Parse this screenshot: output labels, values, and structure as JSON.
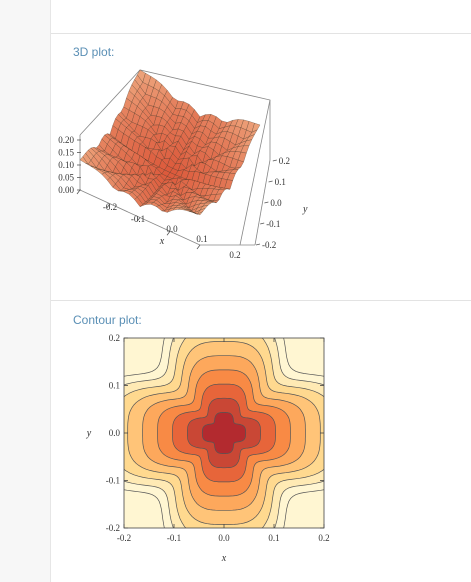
{
  "sections": {
    "plot3d_label": "3D plot:",
    "contour_label": "Contour plot:"
  },
  "colors": {
    "label": "#5a8fb5",
    "contour_fills": [
      "#fff6d2",
      "#ffeab4",
      "#ffd98f",
      "#ffc478",
      "#fda85c",
      "#f88a45",
      "#e7653a",
      "#c94735",
      "#b32a2f"
    ]
  },
  "chart_data": [
    {
      "type": "surface3d",
      "title": "",
      "x_ticks": [
        "-0.2",
        "-0.1",
        "0.0",
        "0.1",
        "0.2"
      ],
      "y_ticks": [
        "-0.2",
        "-0.1",
        "0.0",
        "0.1",
        "0.2"
      ],
      "z_ticks": [
        "0.00",
        "0.05",
        "0.10",
        "0.15",
        "0.20"
      ],
      "xlabel": "x",
      "ylabel": "y",
      "xlim": [
        -0.2,
        0.2
      ],
      "ylim": [
        -0.2,
        0.2
      ],
      "zlim": [
        0,
        0.2
      ]
    },
    {
      "type": "contour",
      "title": "",
      "x_ticks": [
        "-0.2",
        "-0.1",
        "0.0",
        "0.1",
        "0.2"
      ],
      "y_ticks": [
        "-0.2",
        "-0.1",
        "0.0",
        "0.1",
        "0.2"
      ],
      "xlabel": "x",
      "ylabel": "y",
      "xlim": [
        -0.2,
        0.2
      ],
      "ylim": [
        -0.2,
        0.2
      ],
      "levels": 9
    }
  ]
}
